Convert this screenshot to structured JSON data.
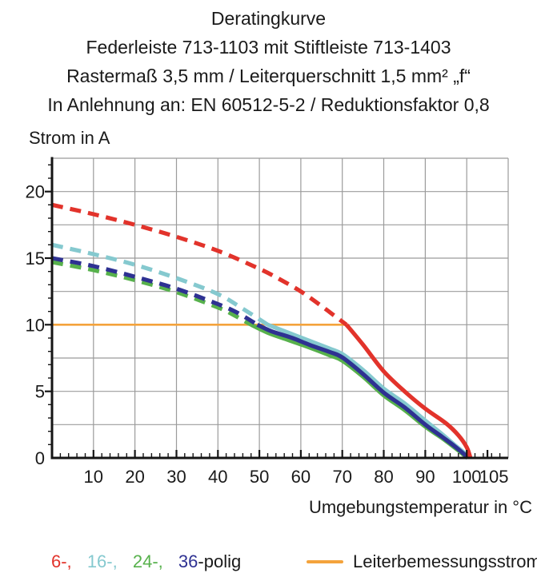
{
  "titles": [
    "Deratingkurve",
    "Federleiste 713-1103 mit Stiftleiste 713-1403",
    "Rastermaß 3,5 mm / Leiterquerschnitt 1,5 mm² „f“",
    "In Anlehnung an: EN 60512-5-2 / Reduktionsfaktor 0,8"
  ],
  "chart_data": {
    "type": "line",
    "title": "Deratingkurve",
    "ylabel": "Strom in A",
    "xlabel": "Umgebungstemperatur in °C",
    "xlim": [
      0,
      110
    ],
    "ylim": [
      0,
      22.5
    ],
    "xticks": [
      10,
      20,
      30,
      40,
      50,
      60,
      70,
      80,
      90,
      100,
      105
    ],
    "yticks": [
      0,
      5,
      10,
      15,
      20
    ],
    "xgrid_step": 10,
    "ygrid_step": 2.5,
    "x_minor_step": 2,
    "y_minor_step": 1,
    "grid": true,
    "legend_position": "bottom",
    "note": "dashed above rated current 10 A, solid below; all curves fall to 0 A at ~100 °C",
    "series": [
      {
        "name": "Leiterbemessungsstrom",
        "color": "#f4a33c",
        "width": 2.6,
        "solid_points": [
          [
            0,
            10
          ],
          [
            71,
            10
          ]
        ]
      },
      {
        "name": "24-polig",
        "color": "#57b14c",
        "dashed_points": [
          [
            0,
            14.7
          ],
          [
            10,
            14.1
          ],
          [
            20,
            13.35
          ],
          [
            30,
            12.45
          ],
          [
            40,
            11.3
          ],
          [
            44,
            10.7
          ],
          [
            48,
            10
          ]
        ],
        "solid_points": [
          [
            48,
            10
          ],
          [
            52,
            9.4
          ],
          [
            57,
            8.85
          ],
          [
            62,
            8.3
          ],
          [
            67,
            7.7
          ],
          [
            70,
            7.3
          ],
          [
            75,
            6.1
          ],
          [
            80,
            4.7
          ],
          [
            85,
            3.6
          ],
          [
            90,
            2.35
          ],
          [
            94,
            1.5
          ],
          [
            97,
            0.8
          ],
          [
            99.2,
            0.25
          ],
          [
            100.2,
            0
          ]
        ]
      },
      {
        "name": "16-polig",
        "color": "#85c9cf",
        "dashed_points": [
          [
            0,
            16
          ],
          [
            10,
            15.3
          ],
          [
            20,
            14.5
          ],
          [
            30,
            13.5
          ],
          [
            40,
            12.3
          ],
          [
            46,
            11.2
          ],
          [
            52,
            10
          ]
        ],
        "solid_points": [
          [
            52,
            10
          ],
          [
            57,
            9.4
          ],
          [
            62,
            8.8
          ],
          [
            67,
            8.2
          ],
          [
            70,
            7.8
          ],
          [
            75,
            6.6
          ],
          [
            80,
            5.2
          ],
          [
            85,
            4.1
          ],
          [
            90,
            2.8
          ],
          [
            94,
            1.8
          ],
          [
            97,
            1.0
          ],
          [
            99.5,
            0.35
          ],
          [
            100.5,
            0
          ]
        ]
      },
      {
        "name": "36-polig",
        "color": "#2e3192",
        "dashed_points": [
          [
            0,
            15
          ],
          [
            10,
            14.4
          ],
          [
            20,
            13.6
          ],
          [
            30,
            12.7
          ],
          [
            40,
            11.55
          ],
          [
            45,
            10.85
          ],
          [
            49.5,
            10
          ]
        ],
        "solid_points": [
          [
            49.5,
            10
          ],
          [
            53,
            9.5
          ],
          [
            58,
            9.0
          ],
          [
            62,
            8.5
          ],
          [
            67,
            7.95
          ],
          [
            70,
            7.55
          ],
          [
            75,
            6.3
          ],
          [
            80,
            4.9
          ],
          [
            85,
            3.8
          ],
          [
            90,
            2.5
          ],
          [
            94,
            1.6
          ],
          [
            97,
            0.9
          ],
          [
            99.3,
            0.3
          ],
          [
            100.3,
            0
          ]
        ]
      },
      {
        "name": "6-polig",
        "color": "#e2332b",
        "dashed_points": [
          [
            0,
            19
          ],
          [
            10,
            18.3
          ],
          [
            20,
            17.5
          ],
          [
            30,
            16.6
          ],
          [
            40,
            15.55
          ],
          [
            50,
            14.2
          ],
          [
            55,
            13.4
          ],
          [
            60,
            12.5
          ],
          [
            65,
            11.4
          ],
          [
            68,
            10.7
          ],
          [
            71,
            10
          ]
        ],
        "solid_points": [
          [
            71,
            10
          ],
          [
            75,
            8.5
          ],
          [
            80,
            6.5
          ],
          [
            85,
            5.0
          ],
          [
            90,
            3.7
          ],
          [
            95,
            2.6
          ],
          [
            98,
            1.7
          ],
          [
            100,
            0.8
          ],
          [
            100.9,
            0
          ]
        ]
      }
    ]
  },
  "legend": {
    "poles": [
      {
        "label": "6-,",
        "color": "#e2332b"
      },
      {
        "label": "16-,",
        "color": "#85c9cf"
      },
      {
        "label": "24-,",
        "color": "#57b14c"
      },
      {
        "label": "36",
        "color": "#2e3192"
      }
    ],
    "poles_suffix": "-polig",
    "rated": {
      "label": "Leiterbemessungsstrom",
      "color": "#f4a33c"
    }
  }
}
